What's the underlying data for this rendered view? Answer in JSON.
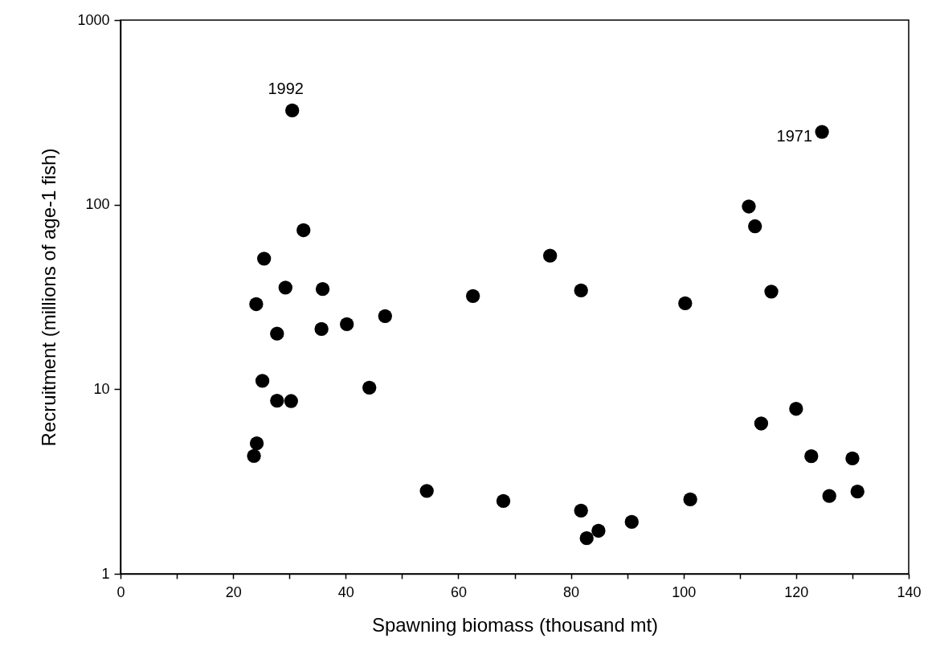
{
  "chart_data": {
    "type": "scatter",
    "xlabel": "Spawning biomass (thousand mt)",
    "ylabel": "Recruitment (millions of age-1 fish)",
    "log": "y",
    "grid": false,
    "marker": "circle",
    "xlim": [
      0,
      140
    ],
    "ylim": [
      1,
      1000
    ],
    "xticks": [
      0,
      {
        "value": 10,
        "label": null
      },
      20,
      {
        "value": 30,
        "label": null
      },
      40,
      {
        "value": 50,
        "label": null
      },
      60,
      {
        "value": 70,
        "label": null
      },
      80,
      {
        "value": 90,
        "label": null
      },
      100,
      {
        "value": 110,
        "label": null
      },
      120,
      {
        "value": 130,
        "label": null
      },
      140
    ],
    "yticks": [
      1,
      10,
      100,
      1000
    ],
    "series": [
      {
        "color": "#000000",
        "x": [
          30.5,
          32.5,
          25.5,
          29.3,
          35.9,
          24.1,
          27.8,
          35.7,
          40.2,
          47.0,
          25.2,
          44.2,
          27.8,
          30.3,
          24.2,
          23.7,
          62.6,
          76.3,
          81.8,
          54.4,
          68.0,
          81.8,
          82.8,
          84.9,
          90.8,
          124.6,
          111.6,
          112.7,
          115.6,
          100.3,
          120.0,
          113.8,
          122.7,
          130.0,
          101.2,
          125.9,
          130.9
        ],
        "values": [
          324,
          72.7,
          51.0,
          35.5,
          34.9,
          28.9,
          20.0,
          21.2,
          22.5,
          24.9,
          11.1,
          10.2,
          8.67,
          8.63,
          5.09,
          4.35,
          32.0,
          52.9,
          34.3,
          2.81,
          2.48,
          2.2,
          1.56,
          1.71,
          1.91,
          248,
          97.7,
          76.4,
          33.8,
          29.2,
          7.83,
          6.52,
          4.34,
          4.22,
          2.53,
          2.64,
          2.79
        ]
      }
    ],
    "annotations": [
      {
        "text": "1992",
        "x": 30.5,
        "y": 324
      },
      {
        "text": "1971",
        "x": 124.6,
        "y": 248
      }
    ]
  }
}
